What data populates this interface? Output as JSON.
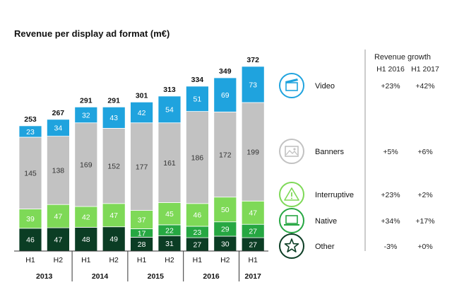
{
  "chart_data": {
    "type": "bar",
    "stacked": true,
    "title": "Revenue per display ad format (m€)",
    "categories": [
      "H1",
      "H2",
      "H1",
      "H2",
      "H1",
      "H2",
      "H1",
      "H2",
      "H1"
    ],
    "years": [
      {
        "label": "2013",
        "span": [
          0,
          1
        ]
      },
      {
        "label": "2014",
        "span": [
          2,
          3
        ]
      },
      {
        "label": "2015",
        "span": [
          4,
          5
        ]
      },
      {
        "label": "2016",
        "span": [
          6,
          7
        ]
      },
      {
        "label": "2017",
        "span": [
          8,
          8
        ]
      }
    ],
    "totals": [
      253,
      267,
      291,
      291,
      301,
      313,
      334,
      349,
      372
    ],
    "series": [
      {
        "key": "other",
        "name": "Other",
        "color": "#0b3d24",
        "label_color": "#ffffff",
        "values": [
          46,
          47,
          48,
          49,
          28,
          31,
          27,
          30,
          27
        ]
      },
      {
        "key": "native",
        "name": "Native",
        "color": "#26a742",
        "label_color": "#ffffff",
        "values": [
          0,
          0,
          0,
          0,
          17,
          22,
          23,
          29,
          27
        ]
      },
      {
        "key": "interruptive",
        "name": "Interruptive",
        "color": "#7ed957",
        "label_color": "#ffffff",
        "values": [
          39,
          47,
          42,
          47,
          37,
          45,
          46,
          50,
          47
        ]
      },
      {
        "key": "banners",
        "name": "Banners",
        "color": "#c2c2c2",
        "label_color": "#333333",
        "values": [
          145,
          138,
          169,
          152,
          177,
          161,
          186,
          172,
          199
        ]
      },
      {
        "key": "video",
        "name": "Video",
        "color": "#1fa3de",
        "label_color": "#ffffff",
        "values": [
          23,
          34,
          32,
          43,
          42,
          54,
          51,
          69,
          73
        ]
      }
    ],
    "growth": {
      "header": "Revenue growth",
      "columns": [
        "H1 2016",
        "H1 2017"
      ],
      "rows": [
        {
          "key": "video",
          "name": "Video",
          "icon": "clapperboard-icon",
          "h1_2016": "+23%",
          "h1_2017": "+42%"
        },
        {
          "key": "banners",
          "name": "Banners",
          "icon": "image-icon",
          "h1_2016": "+5%",
          "h1_2017": "+6%"
        },
        {
          "key": "interruptive",
          "name": "Interruptive",
          "icon": "warning-icon",
          "h1_2016": "+23%",
          "h1_2017": "+2%"
        },
        {
          "key": "native",
          "name": "Native",
          "icon": "laptop-icon",
          "h1_2016": "+34%",
          "h1_2017": "+17%"
        },
        {
          "key": "other",
          "name": "Other",
          "icon": "star-icon",
          "h1_2016": "-3%",
          "h1_2017": "+0%"
        }
      ]
    },
    "legend": "right"
  }
}
